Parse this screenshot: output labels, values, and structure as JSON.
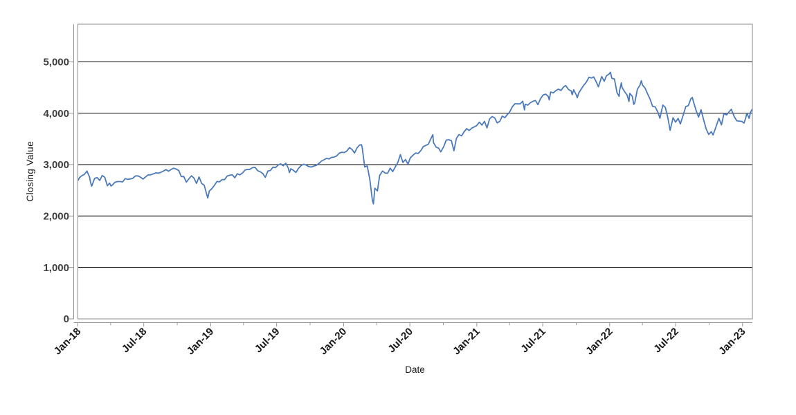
{
  "chart_data": {
    "type": "line",
    "title": "",
    "xlabel": "Date",
    "ylabel": "Closing Value",
    "ylim": [
      0,
      5730
    ],
    "x_domain": [
      "2018-01-01",
      "2023-01-28"
    ],
    "grid": "horizontal-only",
    "legend": "none",
    "line_color": "#4b79ba",
    "grid_color": "#000000",
    "frame_color": "#878787",
    "axis_color": "#919191",
    "yticks": [
      {
        "value": 0,
        "label": "0"
      },
      {
        "value": 1000,
        "label": "1,000"
      },
      {
        "value": 2000,
        "label": "2,000"
      },
      {
        "value": 3000,
        "label": "3,000"
      },
      {
        "value": 4000,
        "label": "4,000"
      },
      {
        "value": 5000,
        "label": "5,000"
      }
    ],
    "xticks": [
      {
        "date": "2018-01-01",
        "label": "Jan-18"
      },
      {
        "date": "2018-07-01",
        "label": "Jul-18"
      },
      {
        "date": "2019-01-01",
        "label": "Jan-19"
      },
      {
        "date": "2019-07-01",
        "label": "Jul-19"
      },
      {
        "date": "2020-01-01",
        "label": "Jan-20"
      },
      {
        "date": "2020-07-01",
        "label": "Jul-20"
      },
      {
        "date": "2021-01-01",
        "label": "Jan-21"
      },
      {
        "date": "2021-07-01",
        "label": "Jul-21"
      },
      {
        "date": "2022-01-01",
        "label": "Jan-22"
      },
      {
        "date": "2022-07-01",
        "label": "Jul-22"
      },
      {
        "date": "2023-01-01",
        "label": "Jan-23"
      }
    ],
    "minor_xticks": [
      "2018-04-01",
      "2018-10-01",
      "2019-04-01",
      "2019-10-01",
      "2020-04-01",
      "2020-10-01",
      "2021-04-01",
      "2021-10-01",
      "2022-04-01",
      "2022-10-01"
    ],
    "points": [
      [
        "2018-01-02",
        2696
      ],
      [
        "2018-01-05",
        2743
      ],
      [
        "2018-01-12",
        2786
      ],
      [
        "2018-01-19",
        2810
      ],
      [
        "2018-01-26",
        2873
      ],
      [
        "2018-02-02",
        2762
      ],
      [
        "2018-02-05",
        2649
      ],
      [
        "2018-02-08",
        2581
      ],
      [
        "2018-02-16",
        2732
      ],
      [
        "2018-02-23",
        2747
      ],
      [
        "2018-03-02",
        2691
      ],
      [
        "2018-03-09",
        2787
      ],
      [
        "2018-03-16",
        2752
      ],
      [
        "2018-03-23",
        2588
      ],
      [
        "2018-03-29",
        2641
      ],
      [
        "2018-04-02",
        2582
      ],
      [
        "2018-04-06",
        2604
      ],
      [
        "2018-04-13",
        2656
      ],
      [
        "2018-04-20",
        2670
      ],
      [
        "2018-04-27",
        2670
      ],
      [
        "2018-05-04",
        2663
      ],
      [
        "2018-05-11",
        2728
      ],
      [
        "2018-05-18",
        2713
      ],
      [
        "2018-05-25",
        2721
      ],
      [
        "2018-06-01",
        2735
      ],
      [
        "2018-06-08",
        2779
      ],
      [
        "2018-06-15",
        2780
      ],
      [
        "2018-06-22",
        2755
      ],
      [
        "2018-06-29",
        2718
      ],
      [
        "2018-07-06",
        2760
      ],
      [
        "2018-07-13",
        2801
      ],
      [
        "2018-07-20",
        2802
      ],
      [
        "2018-07-27",
        2819
      ],
      [
        "2018-08-03",
        2840
      ],
      [
        "2018-08-10",
        2833
      ],
      [
        "2018-08-17",
        2850
      ],
      [
        "2018-08-24",
        2875
      ],
      [
        "2018-08-31",
        2902
      ],
      [
        "2018-09-07",
        2872
      ],
      [
        "2018-09-14",
        2905
      ],
      [
        "2018-09-21",
        2930
      ],
      [
        "2018-09-28",
        2914
      ],
      [
        "2018-10-05",
        2886
      ],
      [
        "2018-10-12",
        2767
      ],
      [
        "2018-10-19",
        2768
      ],
      [
        "2018-10-26",
        2659
      ],
      [
        "2018-11-02",
        2723
      ],
      [
        "2018-11-09",
        2781
      ],
      [
        "2018-11-16",
        2736
      ],
      [
        "2018-11-23",
        2633
      ],
      [
        "2018-11-30",
        2760
      ],
      [
        "2018-12-07",
        2633
      ],
      [
        "2018-12-14",
        2600
      ],
      [
        "2018-12-21",
        2417
      ],
      [
        "2018-12-24",
        2351
      ],
      [
        "2018-12-28",
        2486
      ],
      [
        "2019-01-04",
        2532
      ],
      [
        "2019-01-11",
        2596
      ],
      [
        "2019-01-18",
        2671
      ],
      [
        "2019-01-25",
        2665
      ],
      [
        "2019-02-01",
        2707
      ],
      [
        "2019-02-08",
        2708
      ],
      [
        "2019-02-15",
        2776
      ],
      [
        "2019-02-22",
        2793
      ],
      [
        "2019-03-01",
        2803
      ],
      [
        "2019-03-08",
        2743
      ],
      [
        "2019-03-15",
        2822
      ],
      [
        "2019-03-22",
        2801
      ],
      [
        "2019-03-29",
        2834
      ],
      [
        "2019-04-05",
        2893
      ],
      [
        "2019-04-12",
        2907
      ],
      [
        "2019-04-18",
        2905
      ],
      [
        "2019-04-26",
        2940
      ],
      [
        "2019-05-03",
        2946
      ],
      [
        "2019-05-10",
        2881
      ],
      [
        "2019-05-17",
        2860
      ],
      [
        "2019-05-24",
        2826
      ],
      [
        "2019-05-31",
        2752
      ],
      [
        "2019-06-07",
        2873
      ],
      [
        "2019-06-14",
        2887
      ],
      [
        "2019-06-21",
        2950
      ],
      [
        "2019-06-28",
        2942
      ],
      [
        "2019-07-05",
        2990
      ],
      [
        "2019-07-12",
        3014
      ],
      [
        "2019-07-19",
        2977
      ],
      [
        "2019-07-26",
        3026
      ],
      [
        "2019-08-02",
        2932
      ],
      [
        "2019-08-05",
        2845
      ],
      [
        "2019-08-09",
        2919
      ],
      [
        "2019-08-16",
        2889
      ],
      [
        "2019-08-23",
        2847
      ],
      [
        "2019-08-30",
        2926
      ],
      [
        "2019-09-06",
        2979
      ],
      [
        "2019-09-13",
        3007
      ],
      [
        "2019-09-20",
        2992
      ],
      [
        "2019-09-27",
        2962
      ],
      [
        "2019-10-04",
        2952
      ],
      [
        "2019-10-11",
        2970
      ],
      [
        "2019-10-18",
        2986
      ],
      [
        "2019-10-25",
        3023
      ],
      [
        "2019-11-01",
        3067
      ],
      [
        "2019-11-08",
        3093
      ],
      [
        "2019-11-15",
        3120
      ],
      [
        "2019-11-22",
        3110
      ],
      [
        "2019-11-29",
        3141
      ],
      [
        "2019-12-06",
        3146
      ],
      [
        "2019-12-13",
        3169
      ],
      [
        "2019-12-20",
        3221
      ],
      [
        "2019-12-27",
        3240
      ],
      [
        "2020-01-03",
        3235
      ],
      [
        "2020-01-10",
        3265
      ],
      [
        "2020-01-17",
        3330
      ],
      [
        "2020-01-24",
        3295
      ],
      [
        "2020-01-31",
        3226
      ],
      [
        "2020-02-07",
        3328
      ],
      [
        "2020-02-14",
        3380
      ],
      [
        "2020-02-19",
        3386
      ],
      [
        "2020-02-21",
        3338
      ],
      [
        "2020-02-28",
        2954
      ],
      [
        "2020-03-06",
        2972
      ],
      [
        "2020-03-13",
        2711
      ],
      [
        "2020-03-20",
        2305
      ],
      [
        "2020-03-23",
        2237
      ],
      [
        "2020-03-27",
        2541
      ],
      [
        "2020-04-03",
        2489
      ],
      [
        "2020-04-09",
        2790
      ],
      [
        "2020-04-17",
        2875
      ],
      [
        "2020-04-24",
        2837
      ],
      [
        "2020-05-01",
        2831
      ],
      [
        "2020-05-08",
        2930
      ],
      [
        "2020-05-15",
        2864
      ],
      [
        "2020-05-22",
        2955
      ],
      [
        "2020-05-29",
        3044
      ],
      [
        "2020-06-05",
        3194
      ],
      [
        "2020-06-12",
        3041
      ],
      [
        "2020-06-19",
        3098
      ],
      [
        "2020-06-26",
        3009
      ],
      [
        "2020-07-02",
        3130
      ],
      [
        "2020-07-10",
        3185
      ],
      [
        "2020-07-17",
        3225
      ],
      [
        "2020-07-24",
        3216
      ],
      [
        "2020-07-31",
        3271
      ],
      [
        "2020-08-07",
        3351
      ],
      [
        "2020-08-14",
        3373
      ],
      [
        "2020-08-21",
        3397
      ],
      [
        "2020-08-28",
        3508
      ],
      [
        "2020-09-02",
        3581
      ],
      [
        "2020-09-04",
        3427
      ],
      [
        "2020-09-11",
        3341
      ],
      [
        "2020-09-18",
        3319
      ],
      [
        "2020-09-24",
        3247
      ],
      [
        "2020-10-02",
        3348
      ],
      [
        "2020-10-09",
        3477
      ],
      [
        "2020-10-16",
        3484
      ],
      [
        "2020-10-23",
        3465
      ],
      [
        "2020-10-30",
        3270
      ],
      [
        "2020-11-06",
        3509
      ],
      [
        "2020-11-13",
        3585
      ],
      [
        "2020-11-20",
        3558
      ],
      [
        "2020-11-27",
        3638
      ],
      [
        "2020-12-04",
        3699
      ],
      [
        "2020-12-11",
        3663
      ],
      [
        "2020-12-18",
        3709
      ],
      [
        "2020-12-31",
        3756
      ],
      [
        "2021-01-08",
        3825
      ],
      [
        "2021-01-15",
        3768
      ],
      [
        "2021-01-22",
        3841
      ],
      [
        "2021-01-29",
        3714
      ],
      [
        "2021-02-05",
        3887
      ],
      [
        "2021-02-12",
        3935
      ],
      [
        "2021-02-19",
        3907
      ],
      [
        "2021-02-26",
        3811
      ],
      [
        "2021-03-05",
        3842
      ],
      [
        "2021-03-12",
        3943
      ],
      [
        "2021-03-19",
        3913
      ],
      [
        "2021-03-26",
        3975
      ],
      [
        "2021-04-01",
        4020
      ],
      [
        "2021-04-09",
        4129
      ],
      [
        "2021-04-16",
        4185
      ],
      [
        "2021-04-23",
        4180
      ],
      [
        "2021-04-30",
        4181
      ],
      [
        "2021-05-07",
        4233
      ],
      [
        "2021-05-12",
        4063
      ],
      [
        "2021-05-14",
        4174
      ],
      [
        "2021-05-21",
        4156
      ],
      [
        "2021-05-28",
        4204
      ],
      [
        "2021-06-04",
        4230
      ],
      [
        "2021-06-11",
        4247
      ],
      [
        "2021-06-18",
        4166
      ],
      [
        "2021-06-25",
        4281
      ],
      [
        "2021-07-02",
        4352
      ],
      [
        "2021-07-09",
        4370
      ],
      [
        "2021-07-16",
        4327
      ],
      [
        "2021-07-19",
        4258
      ],
      [
        "2021-07-23",
        4412
      ],
      [
        "2021-07-30",
        4395
      ],
      [
        "2021-08-06",
        4437
      ],
      [
        "2021-08-13",
        4468
      ],
      [
        "2021-08-20",
        4442
      ],
      [
        "2021-08-27",
        4509
      ],
      [
        "2021-09-02",
        4537
      ],
      [
        "2021-09-10",
        4459
      ],
      [
        "2021-09-17",
        4433
      ],
      [
        "2021-09-20",
        4358
      ],
      [
        "2021-09-24",
        4455
      ],
      [
        "2021-10-01",
        4357
      ],
      [
        "2021-10-04",
        4300
      ],
      [
        "2021-10-08",
        4391
      ],
      [
        "2021-10-15",
        4471
      ],
      [
        "2021-10-22",
        4545
      ],
      [
        "2021-10-29",
        4605
      ],
      [
        "2021-11-05",
        4698
      ],
      [
        "2021-11-12",
        4683
      ],
      [
        "2021-11-18",
        4705
      ],
      [
        "2021-11-26",
        4595
      ],
      [
        "2021-12-01",
        4513
      ],
      [
        "2021-12-10",
        4712
      ],
      [
        "2021-12-17",
        4621
      ],
      [
        "2021-12-23",
        4726
      ],
      [
        "2021-12-31",
        4766
      ],
      [
        "2022-01-03",
        4797
      ],
      [
        "2022-01-07",
        4677
      ],
      [
        "2022-01-14",
        4663
      ],
      [
        "2022-01-21",
        4398
      ],
      [
        "2022-01-27",
        4327
      ],
      [
        "2022-01-28",
        4432
      ],
      [
        "2022-02-02",
        4589
      ],
      [
        "2022-02-04",
        4501
      ],
      [
        "2022-02-11",
        4419
      ],
      [
        "2022-02-18",
        4349
      ],
      [
        "2022-02-23",
        4226
      ],
      [
        "2022-02-25",
        4385
      ],
      [
        "2022-03-04",
        4329
      ],
      [
        "2022-03-08",
        4171
      ],
      [
        "2022-03-11",
        4204
      ],
      [
        "2022-03-18",
        4463
      ],
      [
        "2022-03-25",
        4543
      ],
      [
        "2022-03-29",
        4631
      ],
      [
        "2022-04-01",
        4546
      ],
      [
        "2022-04-08",
        4488
      ],
      [
        "2022-04-14",
        4393
      ],
      [
        "2022-04-22",
        4272
      ],
      [
        "2022-04-29",
        4132
      ],
      [
        "2022-05-06",
        4123
      ],
      [
        "2022-05-13",
        4024
      ],
      [
        "2022-05-19",
        3901
      ],
      [
        "2022-05-27",
        4158
      ],
      [
        "2022-06-03",
        4109
      ],
      [
        "2022-06-10",
        3901
      ],
      [
        "2022-06-16",
        3667
      ],
      [
        "2022-06-24",
        3912
      ],
      [
        "2022-07-01",
        3825
      ],
      [
        "2022-07-08",
        3899
      ],
      [
        "2022-07-14",
        3790
      ],
      [
        "2022-07-22",
        3962
      ],
      [
        "2022-07-29",
        4130
      ],
      [
        "2022-08-05",
        4145
      ],
      [
        "2022-08-12",
        4280
      ],
      [
        "2022-08-16",
        4305
      ],
      [
        "2022-08-19",
        4228
      ],
      [
        "2022-08-26",
        4058
      ],
      [
        "2022-09-02",
        3924
      ],
      [
        "2022-09-09",
        4067
      ],
      [
        "2022-09-16",
        3873
      ],
      [
        "2022-09-23",
        3693
      ],
      [
        "2022-09-30",
        3586
      ],
      [
        "2022-10-07",
        3640
      ],
      [
        "2022-10-12",
        3577
      ],
      [
        "2022-10-21",
        3753
      ],
      [
        "2022-10-28",
        3901
      ],
      [
        "2022-11-04",
        3771
      ],
      [
        "2022-11-11",
        3993
      ],
      [
        "2022-11-18",
        3965
      ],
      [
        "2022-11-25",
        4026
      ],
      [
        "2022-12-01",
        4077
      ],
      [
        "2022-12-09",
        3934
      ],
      [
        "2022-12-16",
        3852
      ],
      [
        "2022-12-23",
        3845
      ],
      [
        "2022-12-30",
        3840
      ],
      [
        "2023-01-05",
        3808
      ],
      [
        "2023-01-09",
        3892
      ],
      [
        "2023-01-13",
        3999
      ],
      [
        "2023-01-19",
        3899
      ],
      [
        "2023-01-23",
        4020
      ],
      [
        "2023-01-27",
        4071
      ]
    ]
  }
}
